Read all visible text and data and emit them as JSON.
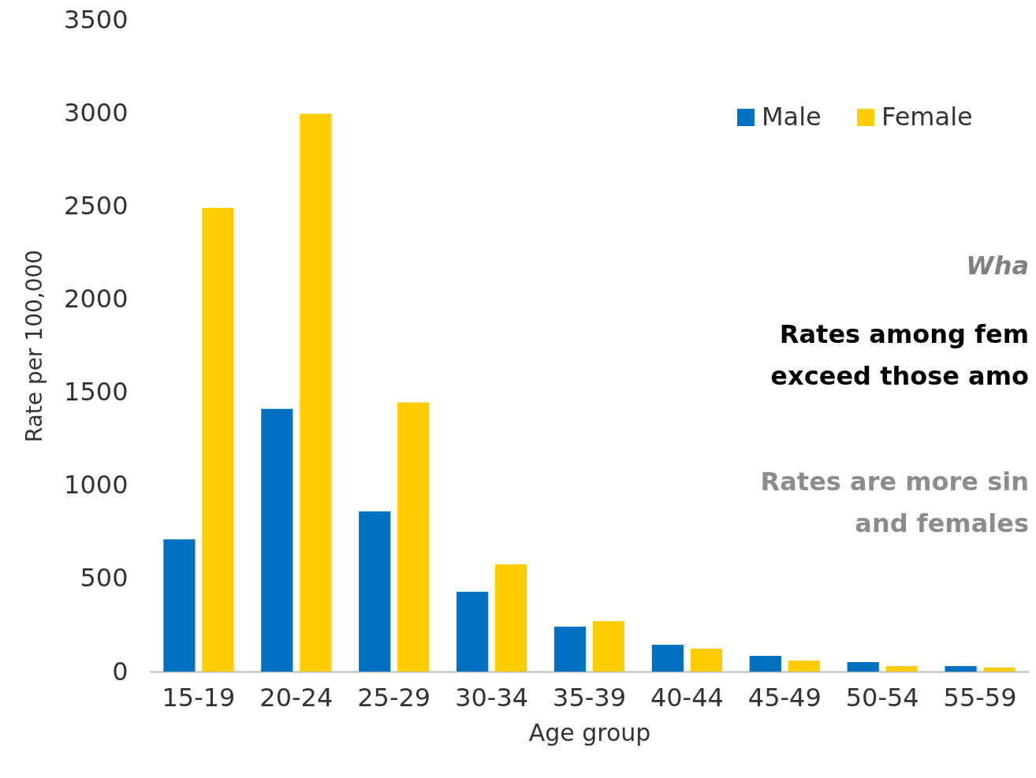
{
  "chart_data": {
    "type": "bar",
    "xlabel": "Age group",
    "ylabel": "Rate per 100,000",
    "categories": [
      "15-19",
      "20-24",
      "25-29",
      "30-34",
      "35-39",
      "40-44",
      "45-49",
      "50-54",
      "55-59"
    ],
    "series": [
      {
        "name": "Male",
        "color": "#0070c0",
        "values": [
          710,
          1410,
          860,
          428,
          241,
          144,
          85,
          51,
          30
        ]
      },
      {
        "name": "Female",
        "color": "#ffcc00",
        "values": [
          2490,
          2995,
          1445,
          576,
          271,
          123,
          59,
          30,
          21
        ]
      }
    ],
    "ylim": [
      0,
      3500
    ],
    "yticks": [
      0,
      500,
      1000,
      1500,
      2000,
      2500,
      3000,
      3500
    ],
    "grid": false,
    "legend": "top right",
    "annotations": [
      "Wha",
      "Rates among fem",
      "exceed those amo",
      "Rates are more sin",
      "and females"
    ]
  }
}
